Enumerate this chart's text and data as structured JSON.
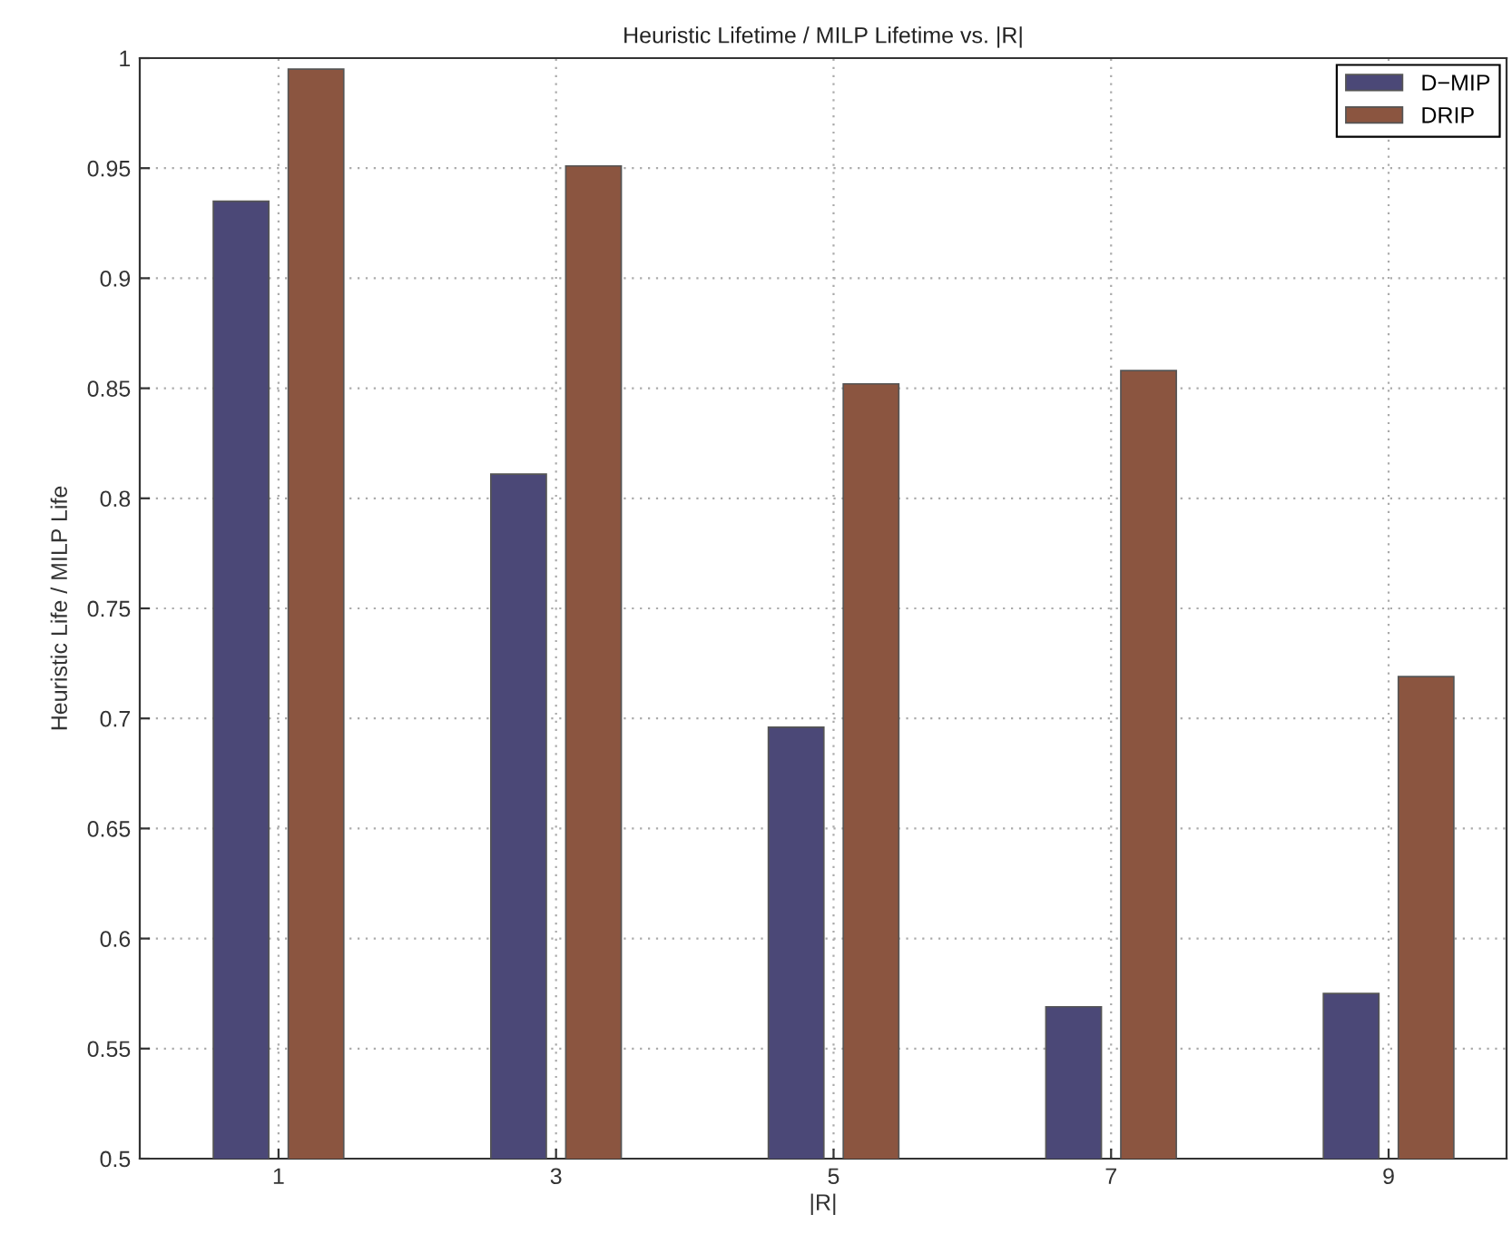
{
  "chart_data": {
    "type": "bar",
    "title": "Heuristic Lifetime / MILP Lifetime vs. |R|",
    "xlabel": "|R|",
    "ylabel": "Heuristic Life / MILP Life",
    "x": [
      1,
      3,
      5,
      7,
      9
    ],
    "series": [
      {
        "name": "D−MIP",
        "color": "#4b4877",
        "values": [
          0.935,
          0.811,
          0.696,
          0.569,
          0.575
        ]
      },
      {
        "name": "DRIP",
        "color": "#8b5540",
        "values": [
          0.995,
          0.951,
          0.852,
          0.858,
          0.719
        ]
      }
    ],
    "xlim": [
      0,
      9.85
    ],
    "xticks": [
      1,
      3,
      5,
      7,
      9
    ],
    "ylim": [
      0.5,
      1
    ],
    "yticks": [
      0.5,
      0.55,
      0.6,
      0.65,
      0.7,
      0.75,
      0.8,
      0.85,
      0.9,
      0.95,
      1
    ],
    "grid": true,
    "legend": "top right"
  }
}
